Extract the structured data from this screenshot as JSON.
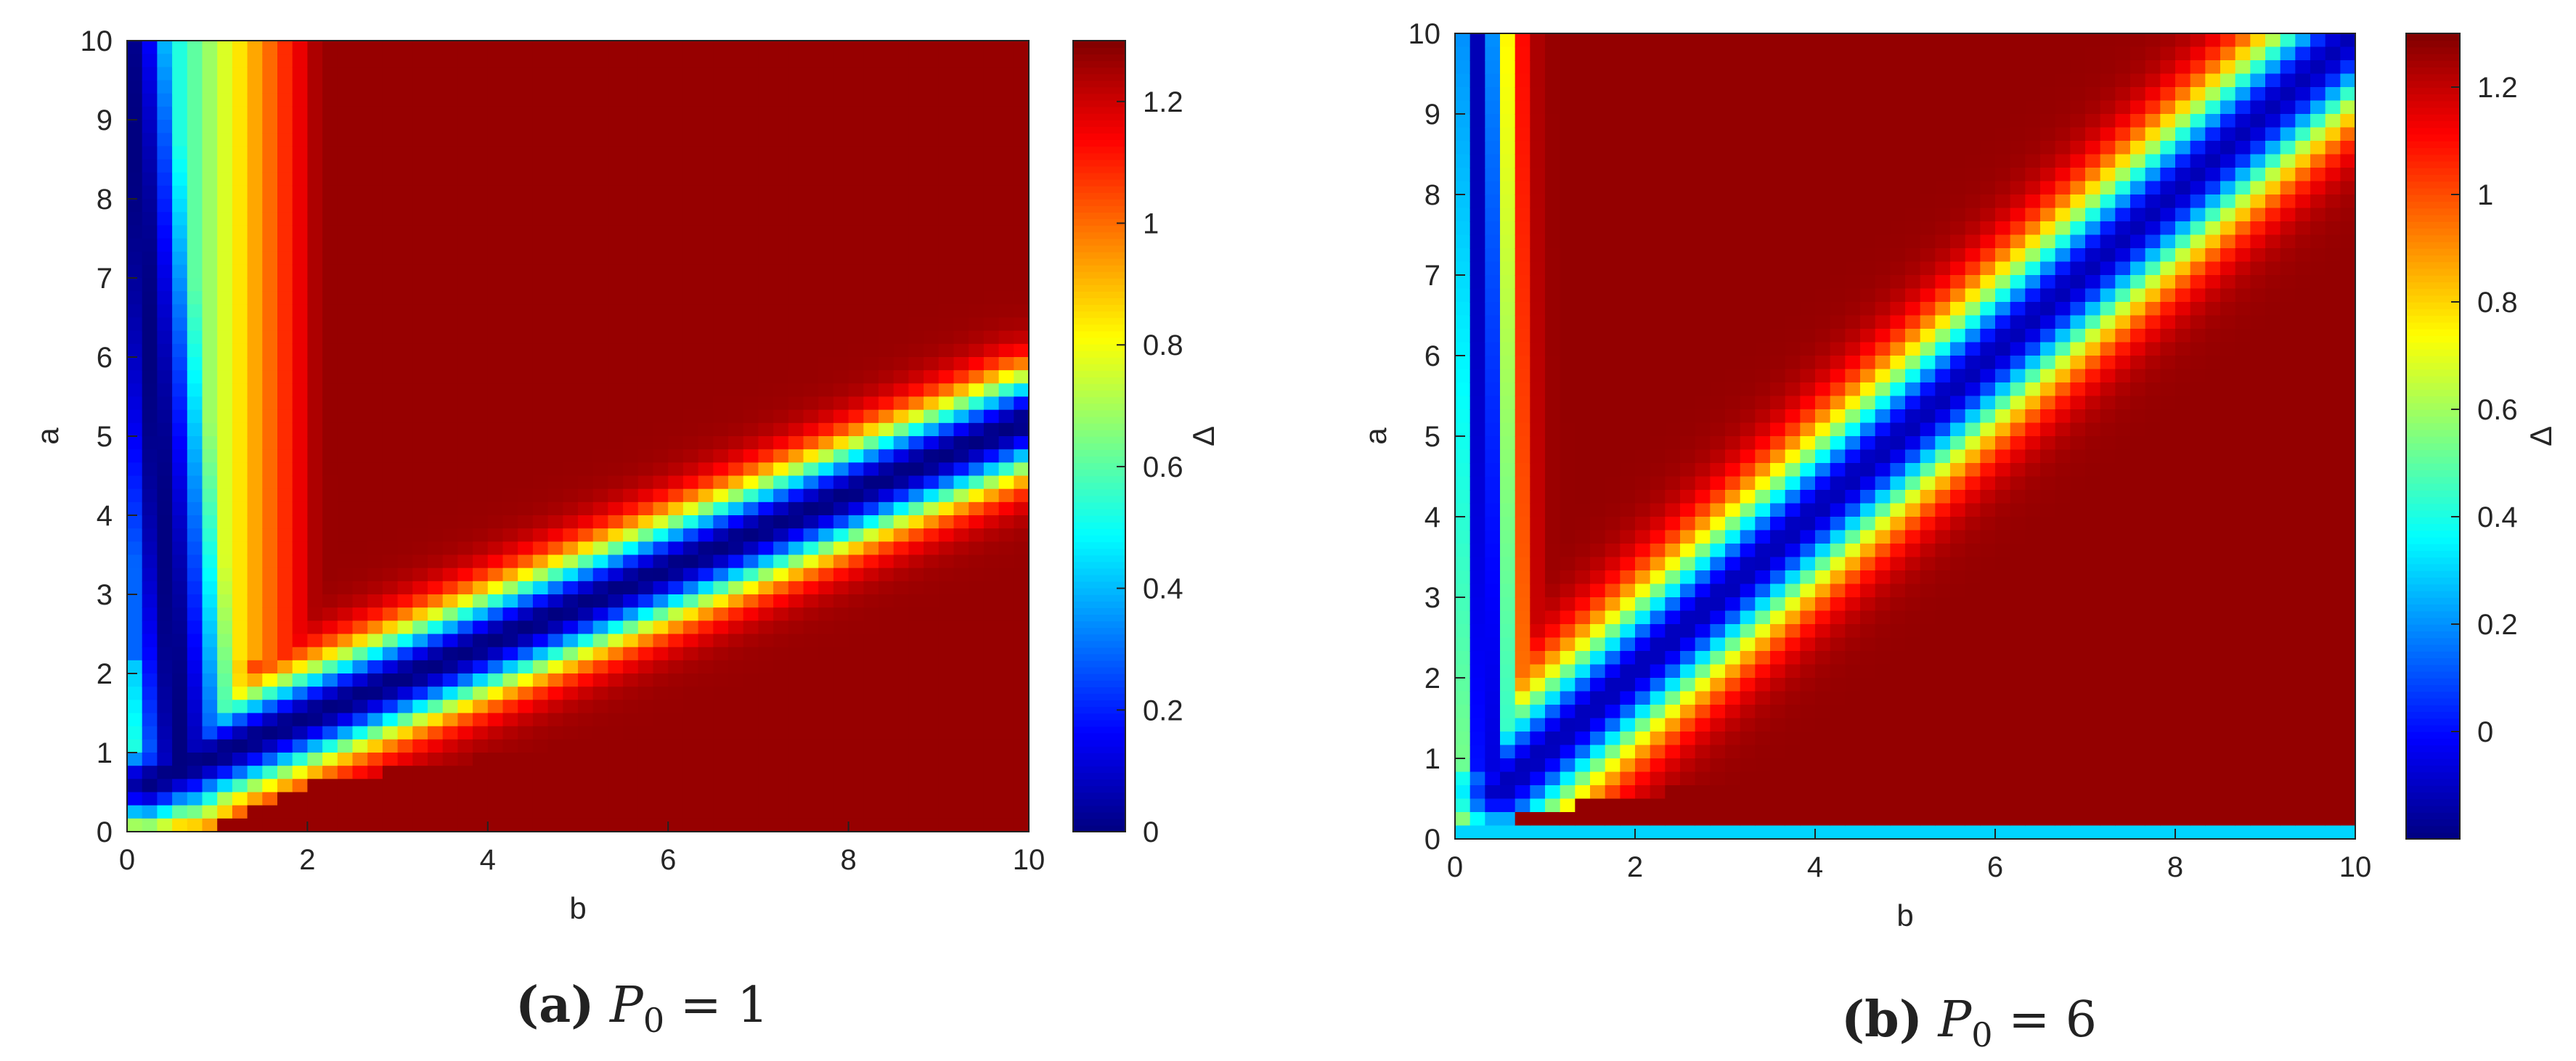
{
  "chart_data": [
    {
      "type": "heatmap",
      "xlabel": "b",
      "ylabel": "a",
      "xlim": [
        0,
        10
      ],
      "ylim": [
        0,
        10
      ],
      "xticks": [
        "0",
        "2",
        "4",
        "6",
        "8",
        "10"
      ],
      "yticks": [
        "0",
        "1",
        "2",
        "3",
        "4",
        "5",
        "6",
        "7",
        "8",
        "9",
        "10"
      ],
      "colorbar": {
        "label": "Δ",
        "range": [
          0,
          1.3
        ],
        "ticks": [
          "0",
          "0.2",
          "0.4",
          "0.6",
          "0.8",
          "1",
          "1.2"
        ],
        "colormap": "jet"
      },
      "caption": {
        "letter": "(a)",
        "symbol": "P",
        "subscript": "0",
        "rest": " = 1"
      },
      "features": {
        "valley_lines": [
          {
            "from": [
              0,
              10
            ],
            "to": [
              0.6,
              0.8
            ]
          },
          {
            "from": [
              0.2,
              0.6
            ],
            "to": [
              10,
              5.2
            ]
          }
        ],
        "vertical_band_center_b": 2.0,
        "corner_point": [
          2.1,
          2.1
        ]
      }
    },
    {
      "type": "heatmap",
      "xlabel": "b",
      "ylabel": "a",
      "xlim": [
        0,
        10
      ],
      "ylim": [
        0,
        10
      ],
      "xticks": [
        "0",
        "2",
        "4",
        "6",
        "8",
        "10"
      ],
      "yticks": [
        "0",
        "1",
        "2",
        "3",
        "4",
        "5",
        "6",
        "7",
        "8",
        "9",
        "10"
      ],
      "colorbar": {
        "label": "Δ",
        "range": [
          -0.2,
          1.3
        ],
        "ticks": [
          "0",
          "0.2",
          "0.4",
          "0.6",
          "0.8",
          "1",
          "1.2"
        ],
        "colormap": "jet"
      },
      "caption": {
        "letter": "(b)",
        "symbol": "P",
        "subscript": "0",
        "rest": " = 6"
      },
      "features": {
        "valley_lines": [
          {
            "from": [
              0.2,
              10
            ],
            "to": [
              0.2,
              0.9
            ]
          },
          {
            "from": [
              0.5,
              0.6
            ],
            "to": [
              10,
              10
            ]
          }
        ],
        "vertical_band_center_b": 0.75,
        "corner_point": [
          0.85,
          1.8
        ]
      }
    }
  ]
}
